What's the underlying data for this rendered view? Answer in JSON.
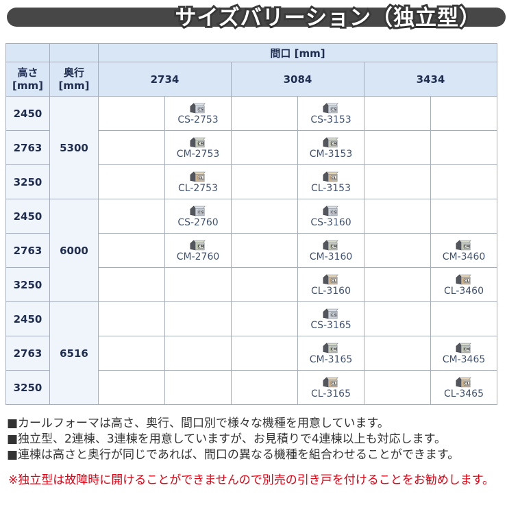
{
  "title": "サイズバリーション（独立型）",
  "colors": {
    "title_bar": "#474747",
    "header_bg": "#d9e6f6",
    "left_col_bg": "#f0f5fb",
    "grid_line": "#a6adba",
    "code_text": "#3f5273",
    "warning_red": "#e60012"
  },
  "table": {
    "span_header": "間口 [mm]",
    "height_label": "高さ",
    "depth_label": "奥行",
    "unit": "[mm]",
    "widths": [
      "2734",
      "3084",
      "3434"
    ],
    "depth_groups": [
      {
        "depth": "5300",
        "rows": [
          {
            "height": "2450",
            "cells": [
              {
                "code": "CS-2753",
                "type": "CS"
              },
              {
                "code": "CS-3153",
                "type": "CS"
              },
              null
            ]
          },
          {
            "height": "2763",
            "cells": [
              {
                "code": "CM-2753",
                "type": "CM"
              },
              {
                "code": "CM-3153",
                "type": "CM"
              },
              null
            ]
          },
          {
            "height": "3250",
            "cells": [
              {
                "code": "CL-2753",
                "type": "CL"
              },
              {
                "code": "CL-3153",
                "type": "CL"
              },
              null
            ]
          }
        ]
      },
      {
        "depth": "6000",
        "rows": [
          {
            "height": "2450",
            "cells": [
              {
                "code": "CS-2760",
                "type": "CS"
              },
              {
                "code": "CS-3160",
                "type": "CS"
              },
              null
            ]
          },
          {
            "height": "2763",
            "cells": [
              {
                "code": "CM-2760",
                "type": "CM"
              },
              {
                "code": "CM-3160",
                "type": "CM"
              },
              {
                "code": "CM-3460",
                "type": "CM"
              }
            ]
          },
          {
            "height": "3250",
            "cells": [
              null,
              {
                "code": "CL-3160",
                "type": "CL"
              },
              {
                "code": "CL-3460",
                "type": "CL"
              }
            ]
          }
        ]
      },
      {
        "depth": "6516",
        "rows": [
          {
            "height": "2450",
            "cells": [
              null,
              {
                "code": "CS-3165",
                "type": "CS"
              },
              null
            ]
          },
          {
            "height": "2763",
            "cells": [
              null,
              {
                "code": "CM-3165",
                "type": "CM"
              },
              {
                "code": "CM-3465",
                "type": "CM"
              }
            ]
          },
          {
            "height": "3250",
            "cells": [
              null,
              {
                "code": "CL-3165",
                "type": "CL"
              },
              {
                "code": "CL-3465",
                "type": "CL"
              }
            ]
          }
        ]
      }
    ]
  },
  "icons": {
    "CS": {
      "top": "#dde3e9",
      "face": "#ccd3da",
      "label": "#e9edf3",
      "letters": "CS"
    },
    "CM": {
      "top": "#d7dbca",
      "face": "#c4c9b4",
      "label": "#eef0e3",
      "letters": "CM"
    },
    "CL": {
      "top": "#e6d6b8",
      "face": "#d0b38b",
      "label": "#f1e8d5",
      "letters": "CL"
    }
  },
  "notes": [
    "■カールフォーマは高さ、奥行、間口別で様々な機種を用意しています。",
    "■独立型、2連棟、3連棟を用意していますが、お見積りで4連棟以上も対応します。",
    "■連棟は高さと奥行が同じであれば、間口の異なる機種を組合わせることができます。"
  ],
  "warning": "※独立型は故障時に開けることができませんので別売の引き戸を付けることをお勧めします。"
}
